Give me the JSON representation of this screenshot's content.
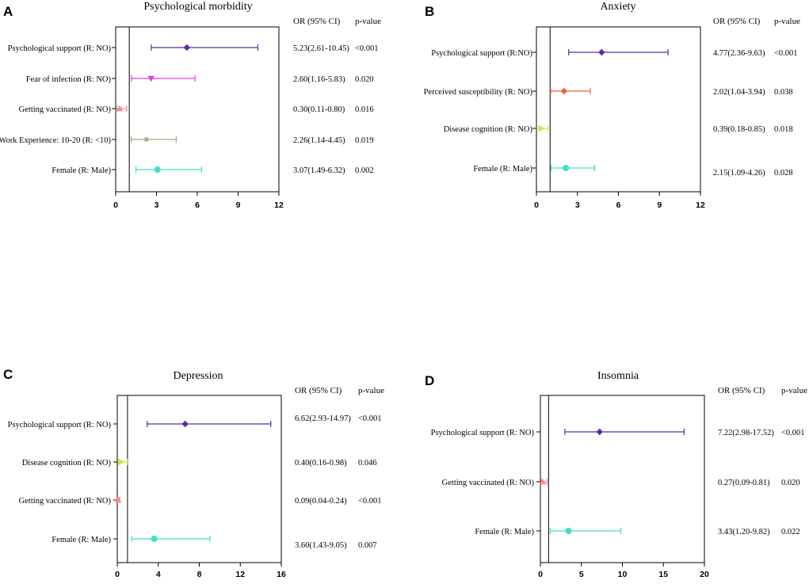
{
  "chart_data": [
    {
      "type": "forest",
      "panel": "A",
      "title": "Psychological morbidity",
      "header_or": "OR (95% CI)",
      "header_p": "p-value",
      "xlim": [
        0,
        12
      ],
      "xticks": [
        "0",
        "3",
        "6",
        "9",
        "12"
      ],
      "reference_line": 1,
      "rows": [
        {
          "label": "Psychological support (R: NO)",
          "or": 5.23,
          "low": 2.61,
          "high": 10.45,
          "or_text": "5.23(2.61-10.45)",
          "p": "<0.001",
          "color": "#5b2aa8",
          "marker": "diamond"
        },
        {
          "label": "Fear of infection (R: NO)",
          "or": 2.6,
          "low": 1.16,
          "high": 5.83,
          "or_text": "2.60(1.16-5.83)",
          "p": "0.020",
          "color": "#e040d8",
          "marker": "triangle-down"
        },
        {
          "label": "Getting vaccinated (R: NO)",
          "or": 0.3,
          "low": 0.11,
          "high": 0.8,
          "or_text": "0.30(0.11-0.80)",
          "p": "0.016",
          "color": "#f08a8a",
          "marker": "triangle-up"
        },
        {
          "label": "Work Experience: 10-20 (R: <10)",
          "or": 2.26,
          "low": 1.14,
          "high": 4.45,
          "or_text": "2.26(1.14-4.45)",
          "p": "0.019",
          "color": "#a8a880",
          "marker": "star"
        },
        {
          "label": "Female (R: Male)",
          "or": 3.07,
          "low": 1.49,
          "high": 6.32,
          "or_text": "3.07(1.49-6.32)",
          "p": "0.002",
          "color": "#40e0c8",
          "marker": "circle"
        }
      ]
    },
    {
      "type": "forest",
      "panel": "B",
      "title": "Anxiety",
      "header_or": "OR (95% CI)",
      "header_p": "p-value",
      "xlim": [
        0,
        12
      ],
      "xticks": [
        "0",
        "3",
        "6",
        "9",
        "12"
      ],
      "reference_line": 1,
      "rows": [
        {
          "label": "Psychological support (R:NO)",
          "or": 4.77,
          "low": 2.36,
          "high": 9.63,
          "or_text": "4.77(2.36-9.63)",
          "p": "<0.001",
          "color": "#5b2aa8",
          "marker": "diamond"
        },
        {
          "label": "Perceived susceptibility (R: NO)",
          "or": 2.02,
          "low": 1.04,
          "high": 3.94,
          "or_text": "2.02(1.04-3.94)",
          "p": "0.038",
          "color": "#f0603a",
          "marker": "diamond"
        },
        {
          "label": "Disease cognition (R: NO)",
          "or": 0.39,
          "low": 0.18,
          "high": 0.85,
          "or_text": "0.39(0.18-0.85)",
          "p": "0.018",
          "color": "#d8e040",
          "marker": "triangle-right"
        },
        {
          "label": "Female (R: Male)",
          "or": 2.15,
          "low": 1.09,
          "high": 4.26,
          "or_text": "2.15(1.09-4.26)",
          "p": "0.028",
          "color": "#40e0c8",
          "marker": "circle"
        }
      ]
    },
    {
      "type": "forest",
      "panel": "C",
      "title": "Depression",
      "header_or": "OR (95% CI)",
      "header_p": "p-value",
      "xlim": [
        0,
        16
      ],
      "xticks": [
        "0",
        "4",
        "8",
        "12",
        "16"
      ],
      "reference_line": 1,
      "rows": [
        {
          "label": "Psychological support (R: NO)",
          "or": 6.62,
          "low": 2.93,
          "high": 14.97,
          "or_text": "6.62(2.93-14.97)",
          "p": "<0.001",
          "color": "#5b2aa8",
          "marker": "diamond"
        },
        {
          "label": "Disease cognition (R: NO)",
          "or": 0.4,
          "low": 0.16,
          "high": 0.98,
          "or_text": "0.40(0.16-0.98)",
          "p": "0.046",
          "color": "#d8e040",
          "marker": "triangle-right"
        },
        {
          "label": "Getting vaccinated (R: NO)",
          "or": 0.09,
          "low": 0.04,
          "high": 0.24,
          "or_text": "0.09(0.04-0.24)",
          "p": "<0.001",
          "color": "#f08a8a",
          "marker": "triangle-up"
        },
        {
          "label": "Female (R: Male)",
          "or": 3.6,
          "low": 1.43,
          "high": 9.05,
          "or_text": "3.60(1.43-9.05)",
          "p": "0.007",
          "color": "#40e0c8",
          "marker": "circle"
        }
      ]
    },
    {
      "type": "forest",
      "panel": "D",
      "title": "Insomnia",
      "header_or": "OR (95% CI)",
      "header_p": "p-value",
      "xlim": [
        0,
        20
      ],
      "xticks": [
        "0",
        "5",
        "10",
        "15",
        "20"
      ],
      "reference_line": 1,
      "rows": [
        {
          "label": "Psychological support (R: NO)",
          "or": 7.22,
          "low": 2.98,
          "high": 17.52,
          "or_text": "7.22(2.98-17.52)",
          "p": "<0.001",
          "color": "#5b2aa8",
          "marker": "diamond"
        },
        {
          "label": "Getting vaccinated (R: NO)",
          "or": 0.27,
          "low": 0.09,
          "high": 0.81,
          "or_text": "0.27(0.09-0.81)",
          "p": "0.020",
          "color": "#f08a8a",
          "marker": "triangle-up"
        },
        {
          "label": "Female (R: Male)",
          "or": 3.43,
          "low": 1.2,
          "high": 9.82,
          "or_text": "3.43(1.20-9.82)",
          "p": "0.022",
          "color": "#40e0c8",
          "marker": "circle"
        }
      ]
    }
  ]
}
